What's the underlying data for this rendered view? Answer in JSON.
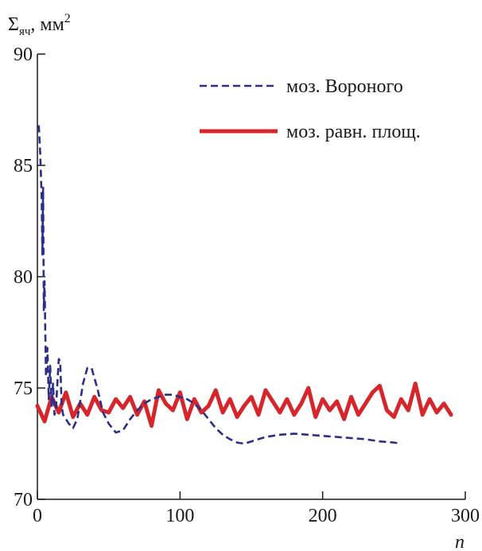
{
  "chart_data": {
    "type": "line",
    "title": "",
    "ylabel": {
      "base": "Σ",
      "sub": "яч",
      "rest": ", мм",
      "sup": "2"
    },
    "xlabel": "n",
    "xlim": [
      0,
      300
    ],
    "ylim": [
      70,
      90
    ],
    "xticks": [
      0,
      100,
      200,
      300
    ],
    "yticks": [
      70,
      75,
      80,
      85,
      90
    ],
    "grid": false,
    "legend_position": "top-right",
    "series": [
      {
        "name": "моз. Вороного",
        "style": "dashed",
        "color": "#2b2f8a",
        "x": [
          1,
          2,
          3,
          3.5,
          4,
          4.5,
          5,
          6,
          7,
          8,
          9,
          10,
          11,
          12,
          13,
          14,
          15,
          16,
          17,
          18,
          20,
          22,
          25,
          28,
          32,
          35,
          38,
          42,
          46,
          50,
          55,
          60,
          65,
          70,
          75,
          80,
          85,
          90,
          95,
          100,
          105,
          110,
          115,
          120,
          125,
          130,
          135,
          140,
          145,
          150,
          160,
          170,
          180,
          190,
          200,
          210,
          220,
          230,
          240,
          250,
          255
        ],
        "y": [
          86.8,
          85.5,
          83.5,
          81.0,
          84.0,
          78.5,
          79.8,
          75.5,
          76.8,
          74.5,
          76.0,
          74.2,
          75.2,
          73.8,
          74.0,
          75.2,
          76.3,
          76.2,
          74.2,
          73.8,
          73.6,
          73.4,
          73.2,
          73.6,
          75.2,
          75.9,
          75.9,
          75.0,
          73.9,
          73.4,
          73.0,
          73.1,
          73.6,
          74.0,
          74.3,
          74.5,
          74.6,
          74.7,
          74.7,
          74.6,
          74.5,
          74.3,
          74.0,
          73.6,
          73.2,
          72.9,
          72.7,
          72.55,
          72.5,
          72.6,
          72.8,
          72.9,
          72.95,
          72.9,
          72.85,
          72.8,
          72.75,
          72.7,
          72.6,
          72.55,
          72.5
        ]
      },
      {
        "name": "моз. равн. площ.",
        "style": "solid",
        "color": "#d7262b",
        "x": [
          0,
          5,
          10,
          15,
          20,
          25,
          30,
          35,
          40,
          45,
          50,
          55,
          60,
          65,
          70,
          75,
          80,
          85,
          90,
          95,
          100,
          105,
          110,
          115,
          120,
          125,
          130,
          135,
          140,
          145,
          150,
          155,
          160,
          165,
          170,
          175,
          180,
          185,
          190,
          195,
          200,
          205,
          210,
          215,
          220,
          225,
          230,
          235,
          240,
          245,
          250,
          255,
          260,
          265,
          270,
          275,
          280,
          285,
          290
        ],
        "y": [
          74.2,
          73.5,
          74.6,
          73.9,
          74.8,
          73.7,
          74.3,
          73.8,
          74.6,
          74.0,
          73.9,
          74.5,
          74.1,
          74.6,
          73.8,
          74.4,
          73.3,
          74.9,
          74.3,
          74.0,
          74.8,
          73.6,
          74.5,
          73.9,
          74.2,
          74.9,
          73.9,
          74.5,
          73.7,
          74.2,
          74.6,
          73.8,
          74.9,
          74.4,
          73.9,
          74.5,
          73.8,
          74.3,
          75.0,
          73.7,
          74.5,
          74.0,
          74.4,
          73.6,
          74.6,
          73.8,
          74.3,
          74.8,
          75.1,
          74.0,
          73.7,
          74.5,
          74.0,
          75.2,
          73.8,
          74.5,
          73.9,
          74.3,
          73.8
        ]
      }
    ]
  }
}
